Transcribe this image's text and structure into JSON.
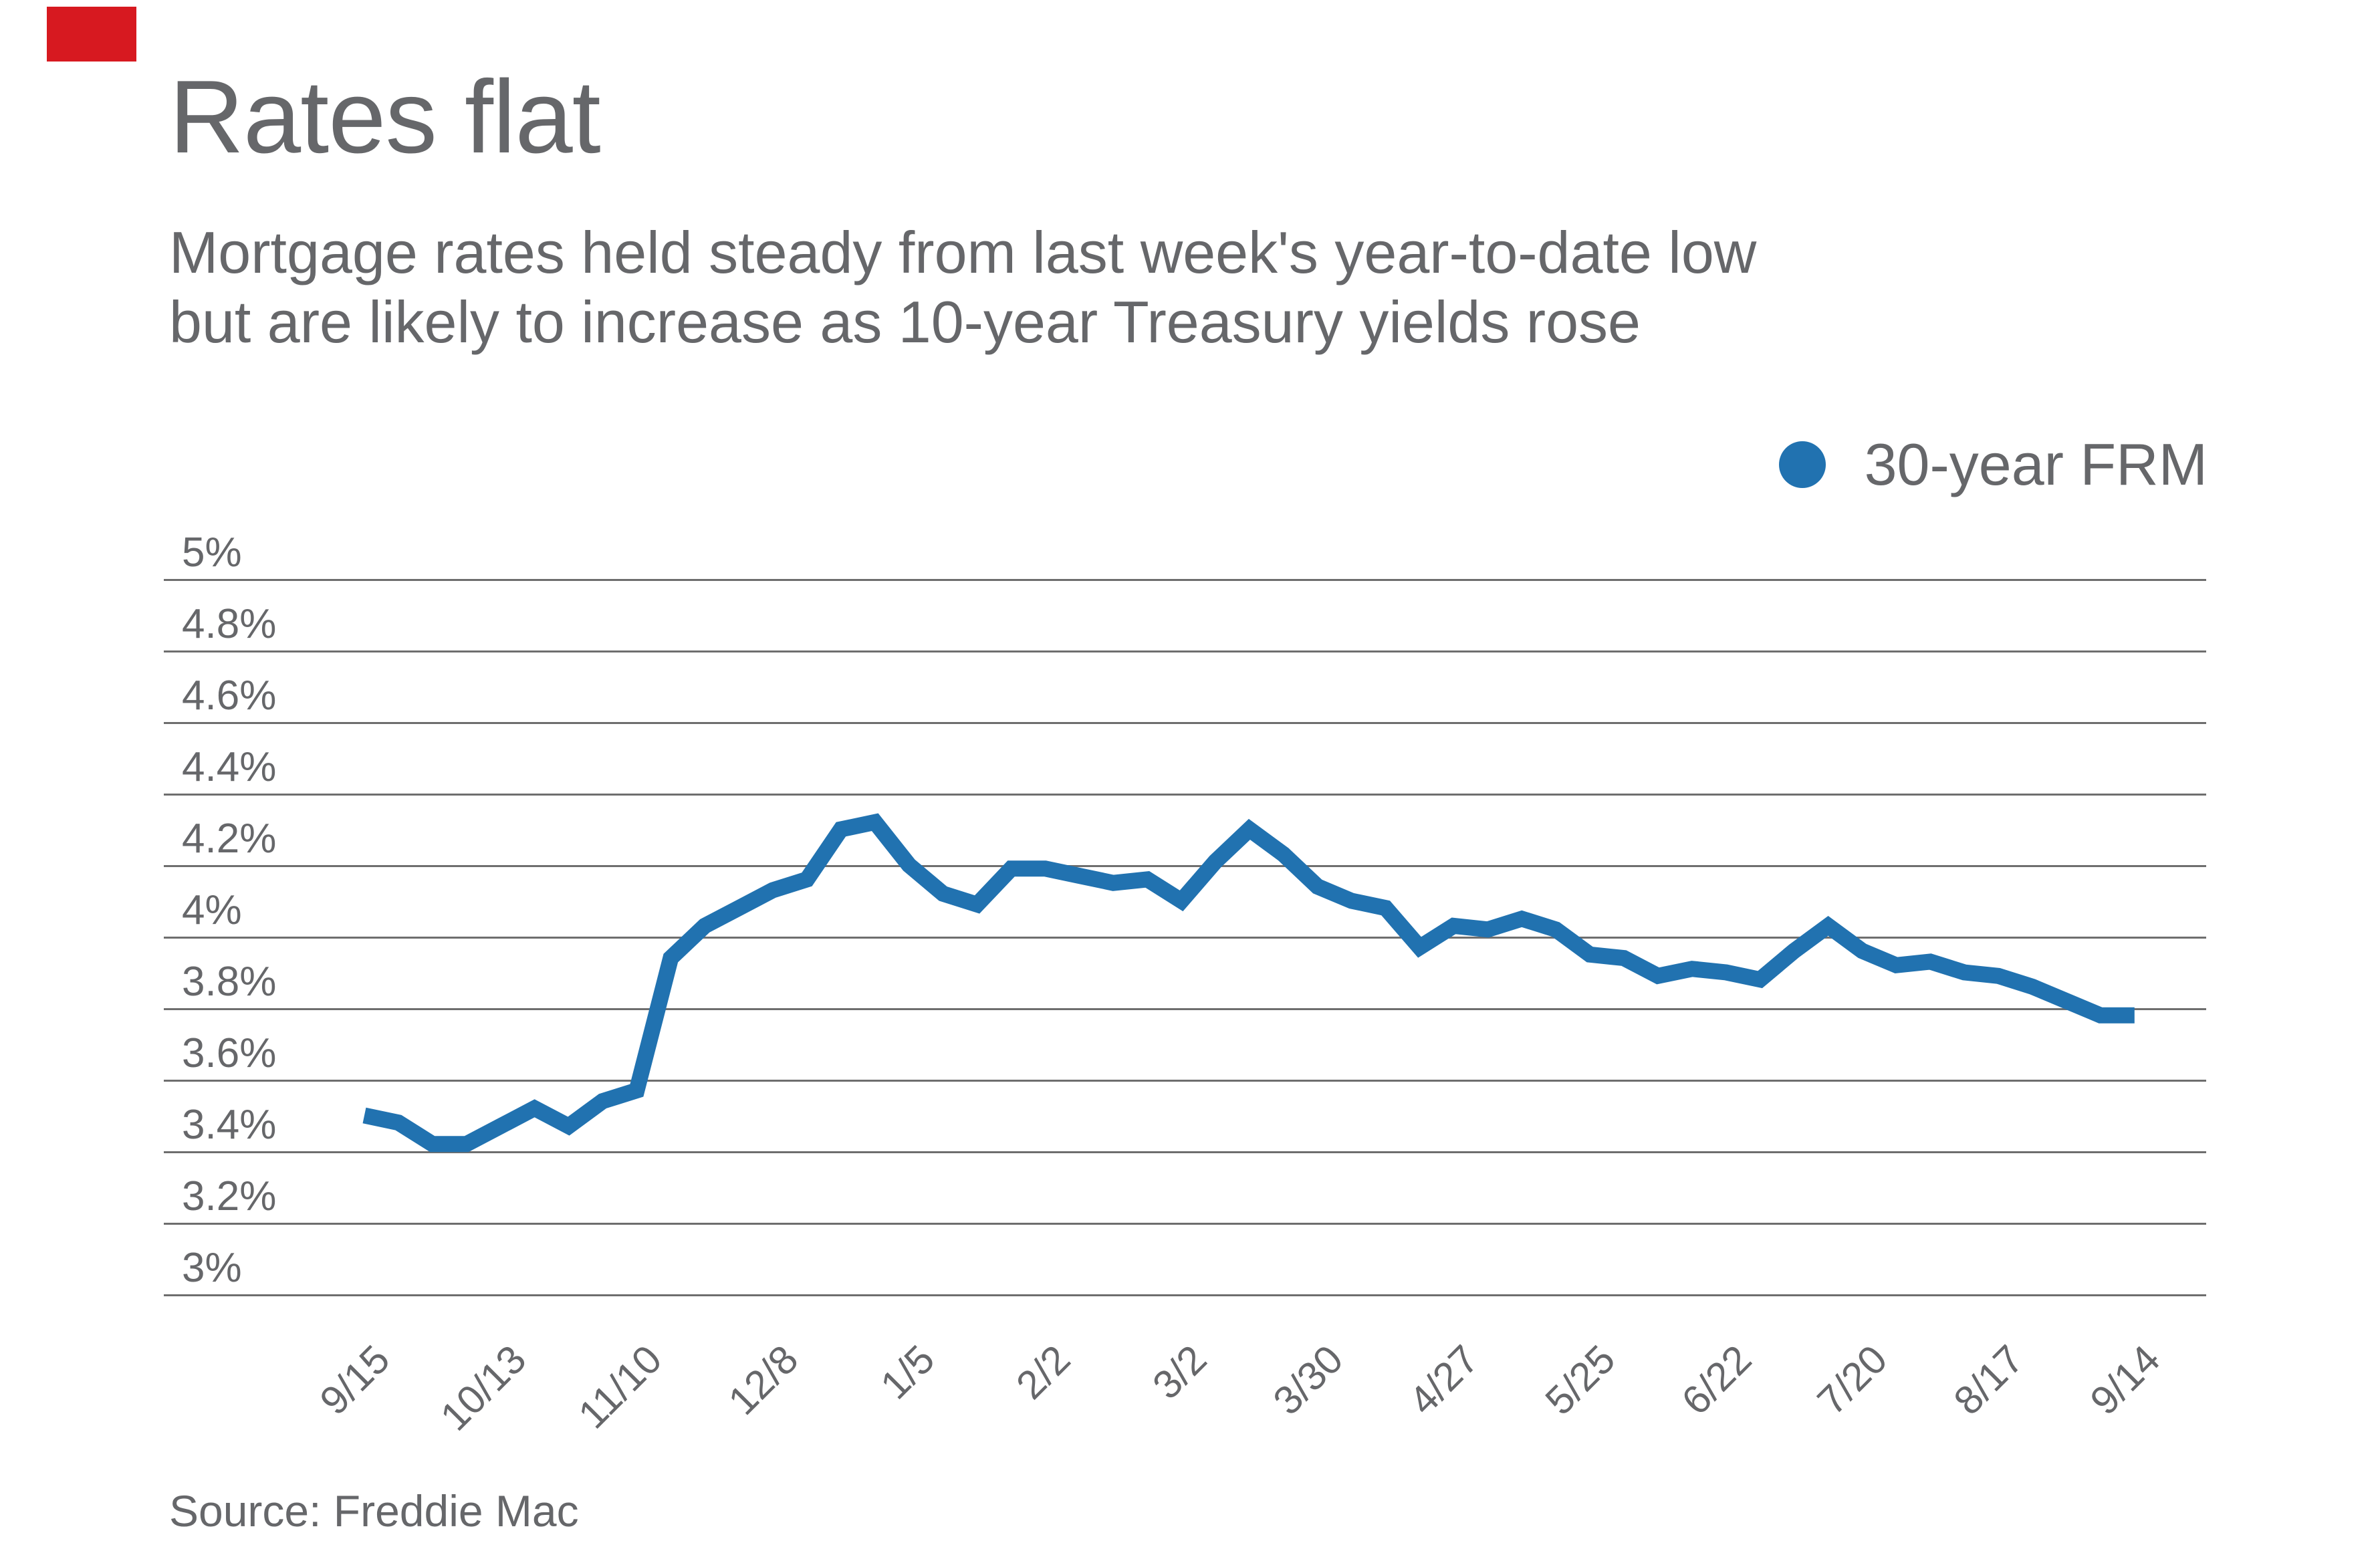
{
  "brand": {
    "accent_color": "#d71920"
  },
  "header": {
    "title": "Rates flat",
    "subtitle_line1": "Mortgage rates held steady from last week's year-to-date low",
    "subtitle_line2": "but are likely to increase as 10-year Treasury yields rose"
  },
  "legend": {
    "label": "30-year FRM",
    "marker_color": "#2172b0"
  },
  "source": {
    "text": "Source: Freddie Mac"
  },
  "chart_data": {
    "type": "line",
    "title": "Rates flat",
    "subtitle": "Mortgage rates held steady from last week's year-to-date low but are likely to increase as 10-year Treasury yields rose",
    "ylabel": "",
    "xlabel": "",
    "ylim": [
      3,
      5
    ],
    "y_tick_step": 0.2,
    "y_tick_labels": [
      "5%",
      "4.8%",
      "4.6%",
      "4.4%",
      "4.2%",
      "4%",
      "3.8%",
      "3.6%",
      "3.4%",
      "3.2%",
      "3%"
    ],
    "grid": "horizontal",
    "legend_position": "top-right",
    "x_tick_labels": [
      "9/15",
      "10/13",
      "11/10",
      "12/8",
      "1/5",
      "2/2",
      "3/2",
      "3/30",
      "4/27",
      "5/25",
      "6/22",
      "7/20",
      "8/17",
      "9/14"
    ],
    "x_dates": [
      "9/15",
      "9/22",
      "9/29",
      "10/6",
      "10/13",
      "10/20",
      "10/27",
      "11/3",
      "11/10",
      "11/17",
      "11/23",
      "12/1",
      "12/8",
      "12/15",
      "12/22",
      "12/29",
      "1/5",
      "1/12",
      "1/19",
      "1/26",
      "2/2",
      "2/9",
      "2/16",
      "2/23",
      "3/2",
      "3/9",
      "3/16",
      "3/23",
      "3/30",
      "4/6",
      "4/13",
      "4/20",
      "4/27",
      "5/4",
      "5/11",
      "5/18",
      "5/25",
      "6/1",
      "6/8",
      "6/15",
      "6/22",
      "6/29",
      "7/6",
      "7/13",
      "7/20",
      "7/27",
      "8/3",
      "8/10",
      "8/17",
      "8/24",
      "8/31",
      "9/7",
      "9/14"
    ],
    "series": [
      {
        "name": "30-year FRM",
        "color": "#2172b0",
        "values": [
          3.5,
          3.48,
          3.42,
          3.42,
          3.47,
          3.52,
          3.47,
          3.54,
          3.57,
          3.94,
          4.03,
          4.08,
          4.13,
          4.16,
          4.3,
          4.32,
          4.2,
          4.12,
          4.09,
          4.19,
          4.19,
          4.17,
          4.15,
          4.16,
          4.1,
          4.21,
          4.3,
          4.23,
          4.14,
          4.1,
          4.08,
          3.97,
          4.03,
          4.02,
          4.05,
          4.02,
          3.95,
          3.94,
          3.89,
          3.91,
          3.9,
          3.88,
          3.96,
          4.03,
          3.96,
          3.92,
          3.93,
          3.9,
          3.89,
          3.86,
          3.82,
          3.78,
          3.78
        ]
      }
    ]
  }
}
